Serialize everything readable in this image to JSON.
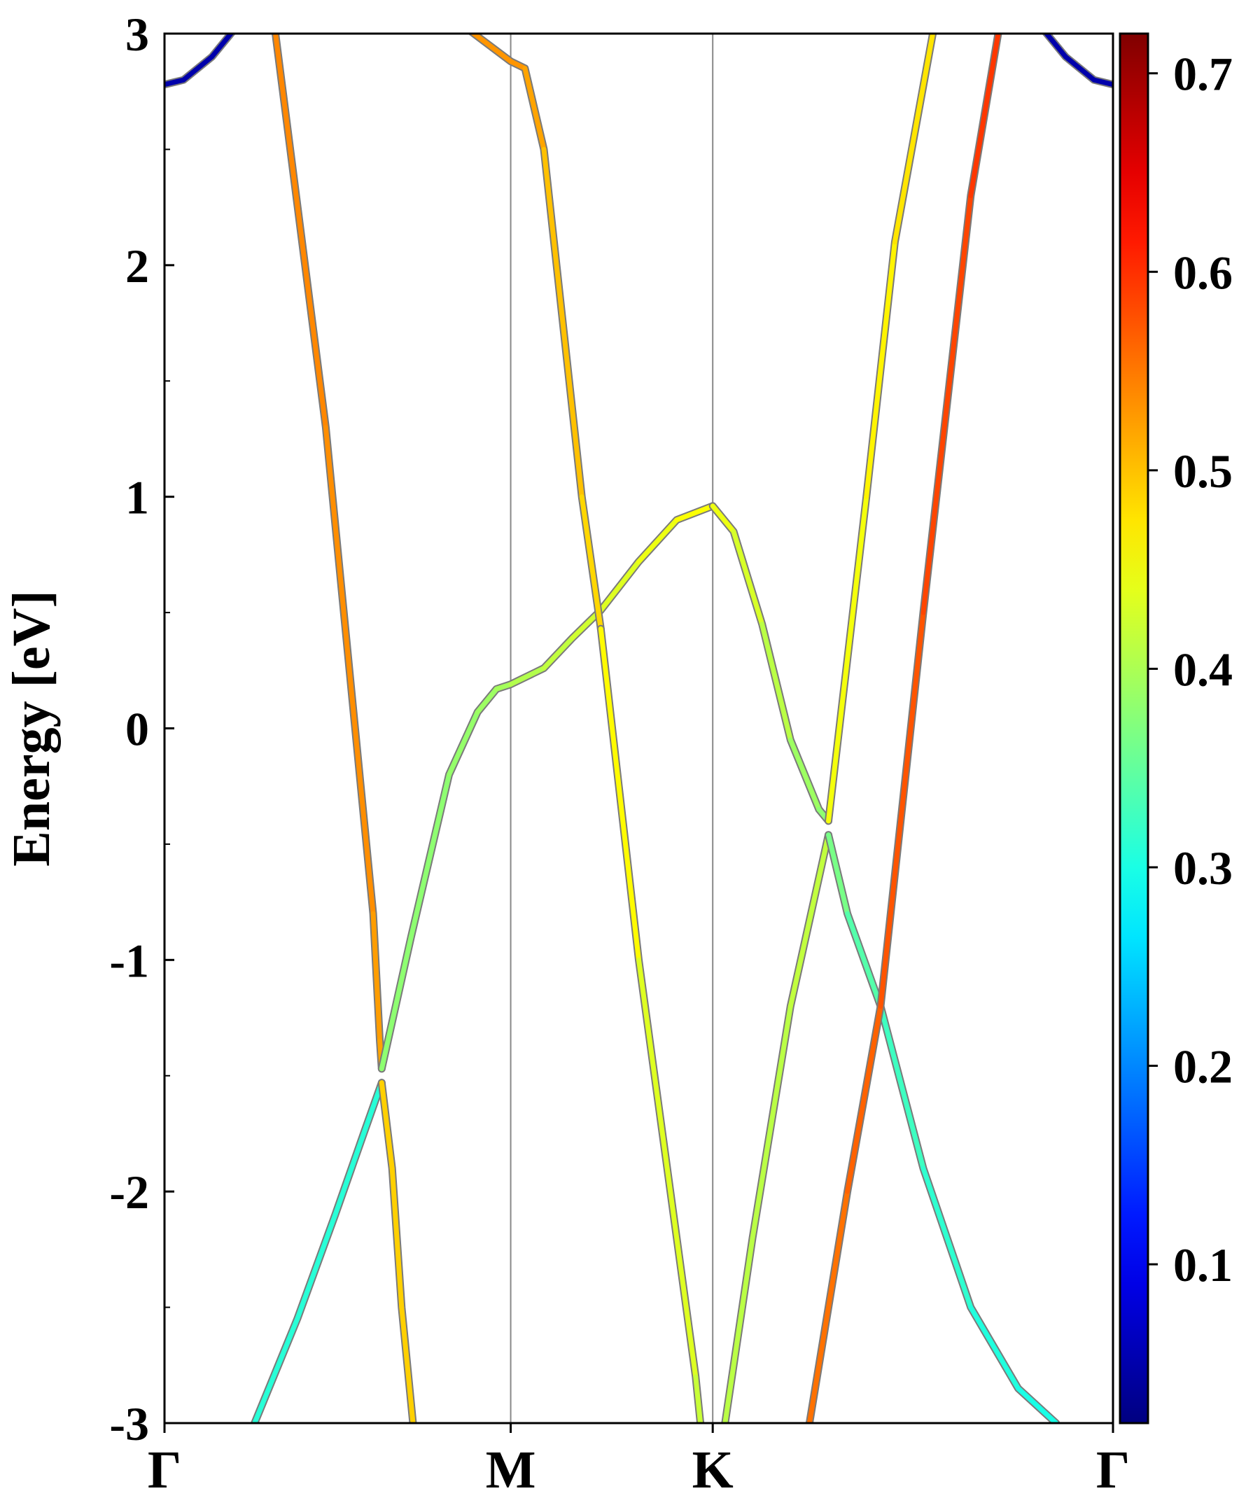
{
  "chart_data": {
    "type": "line",
    "title": "",
    "ylabel": "Energy [eV]",
    "xlabel": "",
    "x_range": [
      0,
      1
    ],
    "ylim": [
      -3,
      3
    ],
    "y_major_ticks": [
      -3,
      -2,
      -1,
      0,
      1,
      2,
      3
    ],
    "y_major_tick_labels": [
      "-3",
      "-2",
      "-1",
      "0",
      "1",
      "2",
      "3"
    ],
    "y_minor_ticks": [
      -2.5,
      -1.5,
      -0.5,
      0.5,
      1.5,
      2.5
    ],
    "high_symmetry_points": [
      {
        "label": "Γ",
        "x": 0.0
      },
      {
        "label": "M",
        "x": 0.365
      },
      {
        "label": "K",
        "x": 0.578
      },
      {
        "label": "Γ",
        "x": 1.0
      }
    ],
    "grid": false,
    "vertical_separators": true,
    "colorbar": {
      "colormap": "jet",
      "min": 0.02,
      "max": 0.72,
      "ticks": [
        0.1,
        0.2,
        0.3,
        0.4,
        0.5,
        0.6,
        0.7
      ],
      "tick_labels": [
        "0.1",
        "0.2",
        "0.3",
        "0.4",
        "0.5",
        "0.6",
        "0.7"
      ]
    },
    "series": [
      {
        "x": [
          0.0,
          0.02,
          0.05,
          0.07,
          0.08
        ],
        "y": [
          2.78,
          2.8,
          2.9,
          3.0,
          3.05
        ],
        "c": [
          0.05,
          0.05,
          0.05,
          0.05,
          0.05
        ]
      },
      {
        "x": [
          0.92,
          0.93,
          0.95,
          0.98,
          1.0
        ],
        "y": [
          3.05,
          3.0,
          2.9,
          2.8,
          2.78
        ],
        "c": [
          0.05,
          0.05,
          0.05,
          0.05,
          0.05
        ]
      },
      {
        "x": [
          0.117,
          0.17,
          0.22,
          0.227,
          0.229
        ],
        "y": [
          3.0,
          1.3,
          -0.8,
          -1.35,
          -1.47
        ],
        "c": [
          0.54,
          0.54,
          0.53,
          0.52,
          0.52
        ]
      },
      {
        "x": [
          0.229,
          0.26,
          0.3,
          0.33,
          0.35,
          0.365,
          0.4,
          0.43,
          0.46,
          0.5,
          0.54,
          0.578
        ],
        "y": [
          -1.47,
          -0.9,
          -0.2,
          0.07,
          0.17,
          0.19,
          0.26,
          0.39,
          0.51,
          0.72,
          0.9,
          0.96
        ],
        "c": [
          0.38,
          0.38,
          0.38,
          0.39,
          0.39,
          0.4,
          0.41,
          0.42,
          0.43,
          0.44,
          0.45,
          0.46
        ]
      },
      {
        "x": [
          0.578,
          0.6,
          0.63,
          0.66,
          0.69,
          0.7
        ],
        "y": [
          0.96,
          0.85,
          0.45,
          -0.05,
          -0.35,
          -0.4
        ],
        "c": [
          0.45,
          0.44,
          0.42,
          0.4,
          0.38,
          0.38
        ]
      },
      {
        "x": [
          0.7,
          0.74,
          0.77,
          0.81
        ],
        "y": [
          -0.4,
          1.0,
          2.1,
          3.0
        ],
        "c": [
          0.44,
          0.46,
          0.47,
          0.48
        ]
      },
      {
        "x": [
          0.31,
          0.365,
          0.38,
          0.4,
          0.44,
          0.46
        ],
        "y": [
          3.05,
          2.88,
          2.85,
          2.5,
          1.0,
          0.43
        ],
        "c": [
          0.53,
          0.53,
          0.53,
          0.51,
          0.49,
          0.48
        ]
      },
      {
        "x": [
          0.46,
          0.5,
          0.56,
          0.565
        ],
        "y": [
          0.43,
          -1.0,
          -2.8,
          -3.0
        ],
        "c": [
          0.47,
          0.45,
          0.42,
          0.42
        ]
      },
      {
        "x": [
          0.095,
          0.14,
          0.18,
          0.21,
          0.229
        ],
        "y": [
          -3.0,
          -2.55,
          -2.1,
          -1.75,
          -1.53
        ],
        "c": [
          0.31,
          0.31,
          0.31,
          0.31,
          0.31
        ]
      },
      {
        "x": [
          0.229,
          0.24,
          0.25,
          0.262
        ],
        "y": [
          -1.53,
          -1.9,
          -2.5,
          -3.0
        ],
        "c": [
          0.49,
          0.49,
          0.49,
          0.49
        ]
      },
      {
        "x": [
          0.591,
          0.62,
          0.66,
          0.7
        ],
        "y": [
          -3.0,
          -2.2,
          -1.2,
          -0.46
        ],
        "c": [
          0.41,
          0.41,
          0.41,
          0.42
        ]
      },
      {
        "x": [
          0.7,
          0.72,
          0.755,
          0.8,
          0.85,
          0.9,
          0.94
        ],
        "y": [
          -0.46,
          -0.8,
          -1.2,
          -1.9,
          -2.5,
          -2.85,
          -3.0
        ],
        "c": [
          0.38,
          0.35,
          0.33,
          0.32,
          0.31,
          0.3,
          0.3
        ]
      },
      {
        "x": [
          0.68,
          0.72,
          0.755,
          0.8,
          0.85,
          0.879
        ],
        "y": [
          -3.0,
          -2.0,
          -1.2,
          0.5,
          2.3,
          3.0
        ],
        "c": [
          0.55,
          0.56,
          0.57,
          0.58,
          0.59,
          0.6
        ]
      }
    ]
  }
}
